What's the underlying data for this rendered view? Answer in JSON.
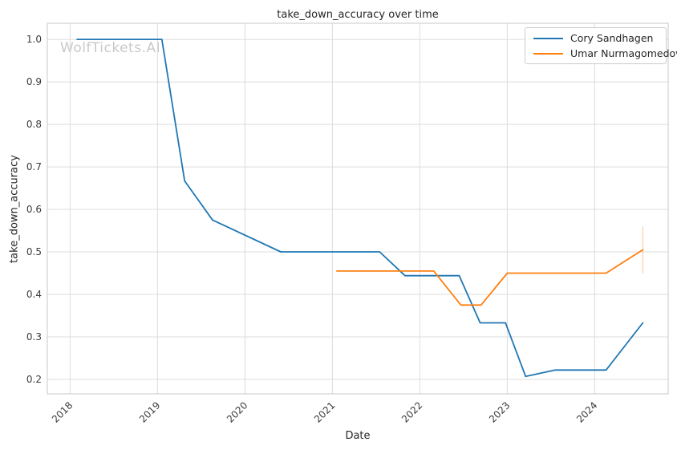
{
  "chart_data": {
    "type": "line",
    "title": "take_down_accuracy over time",
    "xlabel": "Date",
    "ylabel": "take_down_accuracy",
    "watermark": "WolfTickets.AI",
    "grid": true,
    "legend_position": "upper right",
    "xlim": [
      2017.74,
      2024.84
    ],
    "ylim": [
      0.166,
      1.038
    ],
    "x_tick_labels": [
      "2018",
      "2019",
      "2020",
      "2021",
      "2022",
      "2023",
      "2024"
    ],
    "x_ticks": [
      2018,
      2019,
      2020,
      2021,
      2022,
      2023,
      2024
    ],
    "y_tick_labels": [
      "0.2",
      "0.3",
      "0.4",
      "0.5",
      "0.6",
      "0.7",
      "0.8",
      "0.9",
      "1.0"
    ],
    "y_ticks": [
      0.2,
      0.3,
      0.4,
      0.5,
      0.6,
      0.7,
      0.8,
      0.9,
      1.0
    ],
    "colors": {
      "series_blue": "#1f77b4",
      "series_orange": "#ff7f0e",
      "gridline": "#dcdcdc",
      "spine": "#c8c8c8",
      "text": "#262626",
      "tick_text": "#3b3b3b",
      "watermark": "#c9c9c9",
      "background": "#ffffff"
    },
    "series": [
      {
        "name": "Cory Sandhagen",
        "color": "#1f77b4",
        "x": [
          2018.08,
          2019.05,
          2019.31,
          2019.63,
          2020.41,
          2021.54,
          2021.83,
          2022.45,
          2022.69,
          2022.98,
          2023.21,
          2023.55,
          2024.13,
          2024.55
        ],
        "y": [
          1.0,
          1.0,
          0.667,
          0.575,
          0.5,
          0.5,
          0.444,
          0.444,
          0.333,
          0.333,
          0.207,
          0.222,
          0.222,
          0.333
        ]
      },
      {
        "name": "Umar Nurmagomedov",
        "color": "#ff7f0e",
        "x": [
          2021.05,
          2022.16,
          2022.47,
          2022.7,
          2023.0,
          2024.13,
          2024.55
        ],
        "y": [
          0.455,
          0.455,
          0.375,
          0.375,
          0.45,
          0.45,
          0.505
        ],
        "error_bar_last": {
          "x": 2024.55,
          "y_low": 0.449,
          "y_high": 0.56
        }
      }
    ]
  }
}
